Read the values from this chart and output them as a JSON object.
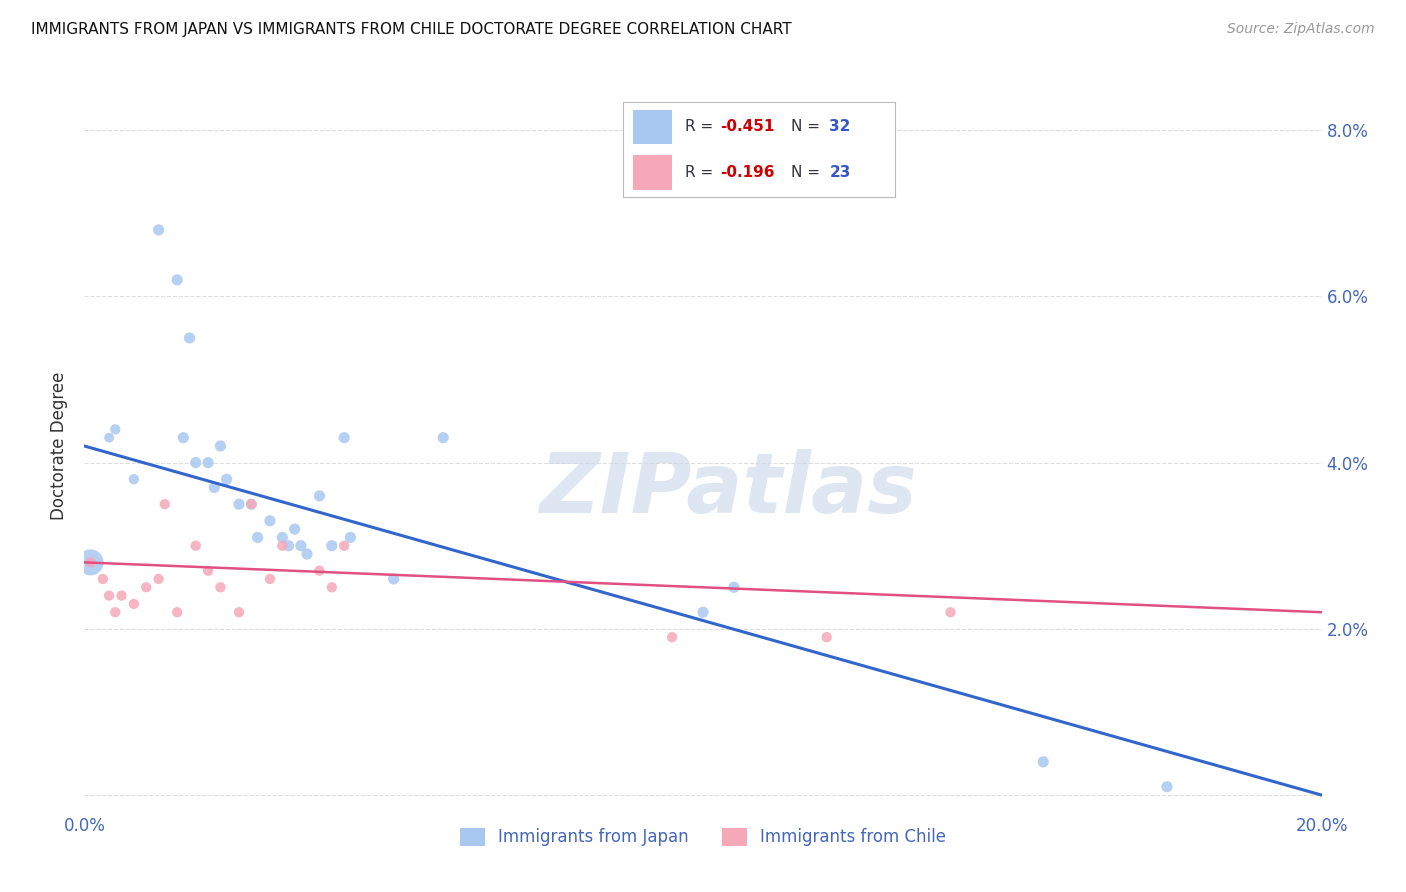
{
  "title": "IMMIGRANTS FROM JAPAN VS IMMIGRANTS FROM CHILE DOCTORATE DEGREE CORRELATION CHART",
  "source": "Source: ZipAtlas.com",
  "ylabel_label": "Doctorate Degree",
  "xlim": [
    0.0,
    0.2
  ],
  "ylim": [
    -0.002,
    0.086
  ],
  "xticks": [
    0.0,
    0.05,
    0.1,
    0.15,
    0.2
  ],
  "xtick_labels": [
    "0.0%",
    "",
    "",
    "",
    "20.0%"
  ],
  "yticks": [
    0.0,
    0.02,
    0.04,
    0.06,
    0.08
  ],
  "ytick_labels_left": [
    "",
    "",
    "",
    "",
    ""
  ],
  "ytick_labels_right": [
    "",
    "2.0%",
    "4.0%",
    "6.0%",
    "8.0%"
  ],
  "japan_color": "#a8c8f0",
  "chile_color": "#f4a8b8",
  "japan_line_color": "#3366cc",
  "chile_line_color": "#e05080",
  "japan_scatter_x": [
    0.001,
    0.004,
    0.005,
    0.008,
    0.012,
    0.015,
    0.016,
    0.017,
    0.018,
    0.02,
    0.021,
    0.022,
    0.023,
    0.025,
    0.027,
    0.028,
    0.03,
    0.032,
    0.033,
    0.034,
    0.035,
    0.036,
    0.038,
    0.04,
    0.042,
    0.043,
    0.05,
    0.058,
    0.1,
    0.105,
    0.155,
    0.175
  ],
  "japan_scatter_y": [
    0.028,
    0.043,
    0.044,
    0.038,
    0.068,
    0.062,
    0.043,
    0.055,
    0.04,
    0.04,
    0.037,
    0.042,
    0.038,
    0.035,
    0.035,
    0.031,
    0.033,
    0.031,
    0.03,
    0.032,
    0.03,
    0.029,
    0.036,
    0.03,
    0.043,
    0.031,
    0.026,
    0.043,
    0.022,
    0.025,
    0.004,
    0.001
  ],
  "japan_scatter_size": [
    350,
    50,
    55,
    55,
    65,
    65,
    65,
    65,
    65,
    65,
    65,
    65,
    65,
    65,
    65,
    65,
    65,
    65,
    65,
    65,
    65,
    65,
    65,
    65,
    65,
    65,
    65,
    65,
    65,
    65,
    65,
    65
  ],
  "chile_scatter_x": [
    0.001,
    0.003,
    0.004,
    0.005,
    0.006,
    0.008,
    0.01,
    0.012,
    0.013,
    0.015,
    0.018,
    0.02,
    0.022,
    0.025,
    0.027,
    0.03,
    0.032,
    0.038,
    0.04,
    0.042,
    0.095,
    0.12,
    0.14
  ],
  "chile_scatter_y": [
    0.028,
    0.026,
    0.024,
    0.022,
    0.024,
    0.023,
    0.025,
    0.026,
    0.035,
    0.022,
    0.03,
    0.027,
    0.025,
    0.022,
    0.035,
    0.026,
    0.03,
    0.027,
    0.025,
    0.03,
    0.019,
    0.019,
    0.022
  ],
  "chile_scatter_size": [
    55,
    55,
    55,
    55,
    55,
    55,
    55,
    55,
    55,
    55,
    55,
    55,
    55,
    55,
    55,
    55,
    55,
    55,
    55,
    55,
    55,
    55,
    55
  ],
  "watermark_text": "ZIPatlas",
  "legend_japan_label": "Immigrants from Japan",
  "legend_chile_label": "Immigrants from Chile",
  "background_color": "#ffffff",
  "grid_color": "#dddddd",
  "tick_color": "#4466bb",
  "title_color": "#111111",
  "source_color": "#999999",
  "ylabel_color": "#333333"
}
